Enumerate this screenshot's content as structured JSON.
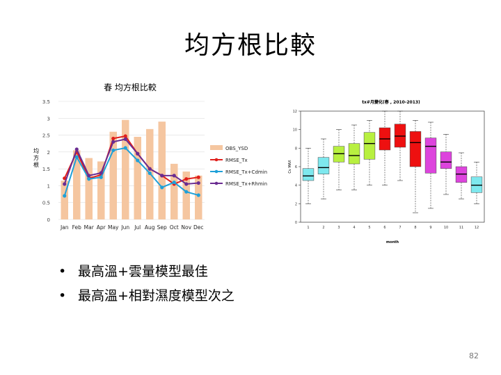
{
  "slide": {
    "title": "均方根比較",
    "bullets": [
      "最高溫+雲量模型最佳",
      "最高溫+相對濕度模型次之"
    ],
    "bullet_symbol": "•",
    "page_number": "82"
  },
  "chart_data": [
    {
      "type": "bar",
      "title": "春 均方根比較",
      "ylabel": "均方根",
      "categories": [
        "Jan",
        "Feb",
        "Mar",
        "Apr",
        "May",
        "Jun",
        "Jul",
        "Aug",
        "Sep",
        "Oct",
        "Nov",
        "Dec"
      ],
      "ylim": [
        0,
        3.5
      ],
      "yticks": [
        "0",
        "0.5",
        "1",
        "1.5",
        "2",
        "2.5",
        "3",
        "3.5"
      ],
      "legend_position": "right",
      "bar_color": "#f5c6a0",
      "series": [
        {
          "name": "OBS_YSD",
          "kind": "bar",
          "color": "#f5c6a0",
          "values": [
            1.15,
            2.05,
            1.82,
            1.72,
            2.6,
            2.95,
            2.45,
            2.68,
            2.9,
            1.65,
            1.42,
            1.3
          ]
        },
        {
          "name": "RMSE_Tx",
          "kind": "line",
          "color": "#e0201c",
          "values": [
            1.22,
            2.0,
            1.22,
            1.32,
            2.4,
            2.47,
            1.95,
            1.5,
            1.3,
            1.05,
            1.2,
            1.25
          ]
        },
        {
          "name": "RMSE_Tx+Cdmin",
          "kind": "line",
          "color": "#1fa0d8",
          "values": [
            0.7,
            1.85,
            1.2,
            1.25,
            2.05,
            2.12,
            1.75,
            1.37,
            0.95,
            1.1,
            0.82,
            0.72
          ]
        },
        {
          "name": "RMSE_Tx+Rhmin",
          "kind": "line",
          "color": "#6a2c91",
          "values": [
            1.05,
            2.08,
            1.3,
            1.38,
            2.3,
            2.38,
            1.95,
            1.5,
            1.3,
            1.3,
            1.05,
            1.08
          ]
        }
      ]
    },
    {
      "type": "box",
      "title": "tx#月變化(春 , 2010-2013)",
      "xlabel": "month",
      "ylabel": "Cv MAX",
      "categories": [
        "1",
        "2",
        "3",
        "4",
        "5",
        "6",
        "7",
        "8",
        "9",
        "10",
        "11",
        "12"
      ],
      "ylim": [
        0,
        12
      ],
      "yticks": [
        "0",
        "2",
        "4",
        "6",
        "8",
        "10",
        "12"
      ],
      "boxes": [
        {
          "q1": 4.5,
          "median": 5.0,
          "q3": 5.8,
          "low": 2.0,
          "high": 8.0,
          "color": "#7ee8ee"
        },
        {
          "q1": 5.2,
          "median": 5.9,
          "q3": 7.0,
          "low": 2.5,
          "high": 9.0,
          "color": "#7ee8ee"
        },
        {
          "q1": 6.5,
          "median": 7.4,
          "q3": 8.2,
          "low": 3.5,
          "high": 10.0,
          "color": "#b8f040"
        },
        {
          "q1": 6.3,
          "median": 7.2,
          "q3": 8.5,
          "low": 3.5,
          "high": 10.5,
          "color": "#b8f040"
        },
        {
          "q1": 6.8,
          "median": 8.5,
          "q3": 9.7,
          "low": 4.0,
          "high": 11.0,
          "color": "#b8f040"
        },
        {
          "q1": 7.8,
          "median": 9.0,
          "q3": 10.2,
          "low": 4.0,
          "high": 12.0,
          "color": "#ee1010"
        },
        {
          "q1": 8.1,
          "median": 9.3,
          "q3": 10.6,
          "low": 4.5,
          "high": 12.0,
          "color": "#ee1010"
        },
        {
          "q1": 6.0,
          "median": 8.6,
          "q3": 9.8,
          "low": 1.0,
          "high": 11.0,
          "color": "#ee1010"
        },
        {
          "q1": 5.3,
          "median": 8.2,
          "q3": 9.1,
          "low": 1.5,
          "high": 10.8,
          "color": "#dd44dd"
        },
        {
          "q1": 5.8,
          "median": 6.5,
          "q3": 7.6,
          "low": 3.0,
          "high": 9.5,
          "color": "#dd44dd"
        },
        {
          "q1": 4.3,
          "median": 5.2,
          "q3": 6.0,
          "low": 2.5,
          "high": 7.5,
          "color": "#dd44dd"
        },
        {
          "q1": 3.2,
          "median": 4.0,
          "q3": 4.9,
          "low": 2.0,
          "high": 6.5,
          "color": "#7ee8ee"
        }
      ]
    }
  ]
}
